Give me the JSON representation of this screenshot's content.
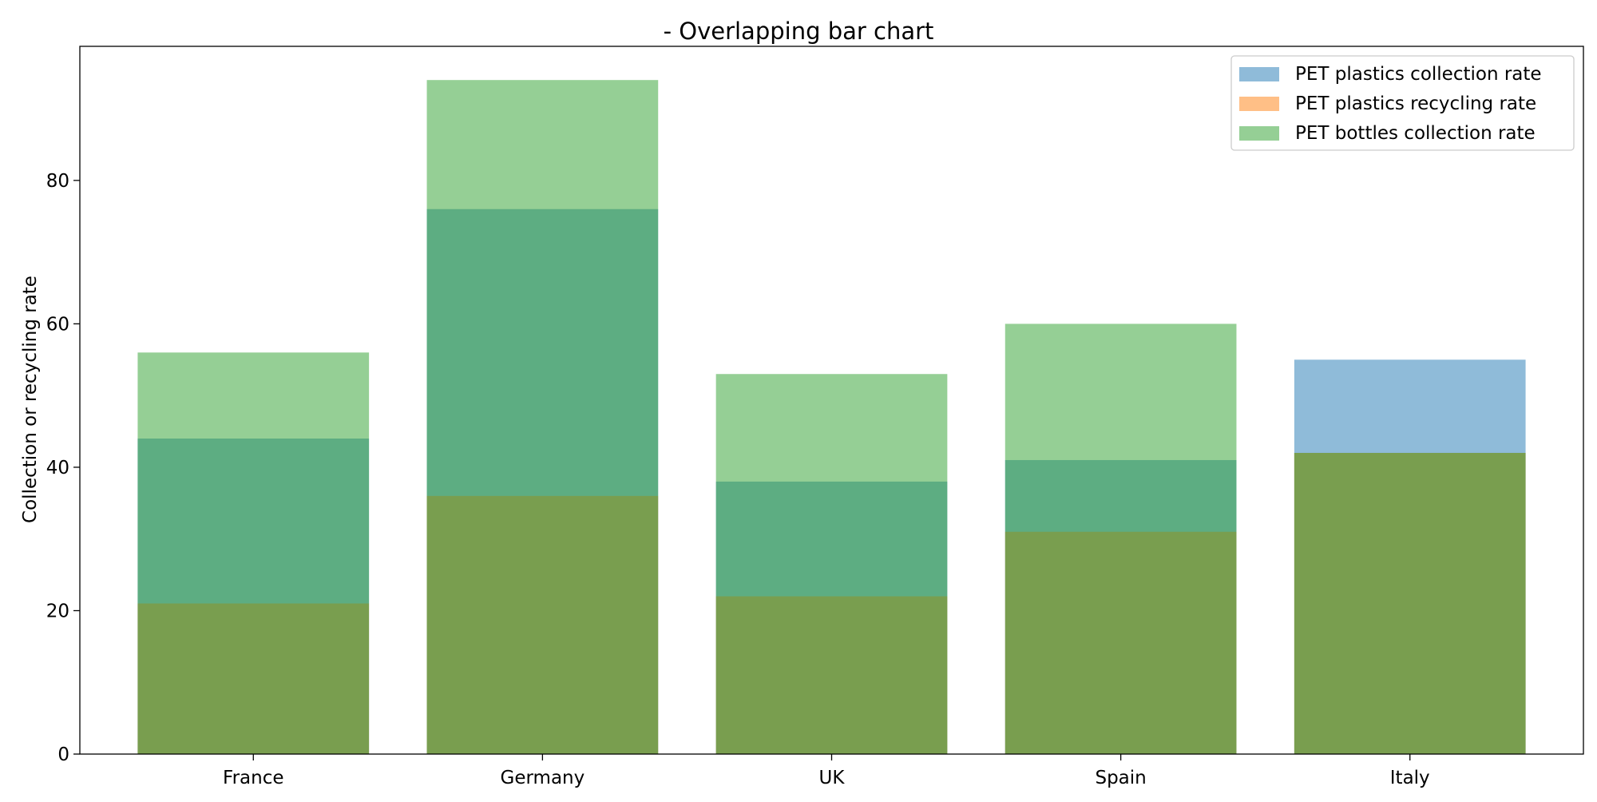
{
  "chart_data": {
    "type": "bar",
    "title": "- Overlapping bar chart",
    "xlabel": "",
    "ylabel": "Collection or recycling rate",
    "categories": [
      "France",
      "Germany",
      "UK",
      "Spain",
      "Italy"
    ],
    "series": [
      {
        "name": "PET plastics collection rate",
        "values": [
          44,
          76,
          38,
          41,
          55
        ],
        "color": "#1f77b4"
      },
      {
        "name": "PET plastics recycling rate",
        "values": [
          21,
          36,
          22,
          31,
          42
        ],
        "color": "#ff7f0e"
      },
      {
        "name": "PET bottles collection rate",
        "values": [
          56,
          94,
          53,
          60,
          42
        ],
        "color": "#2ca02c"
      }
    ],
    "bar_opacity": 0.5,
    "ylim": [
      0,
      98.7
    ],
    "yticks": [
      0,
      20,
      40,
      60,
      80
    ],
    "grid": false,
    "legend": "top-right"
  }
}
